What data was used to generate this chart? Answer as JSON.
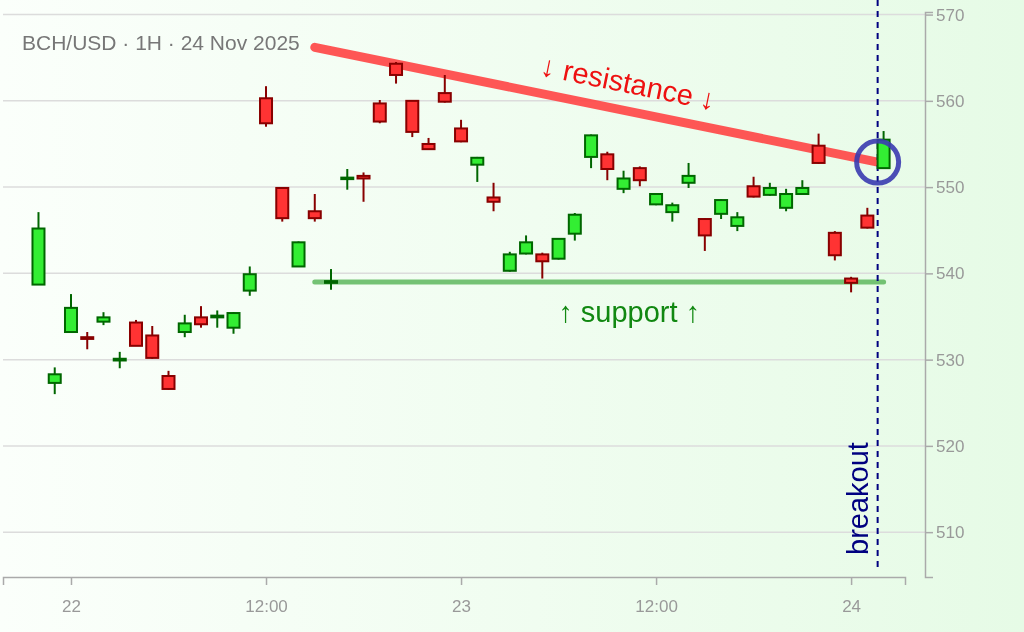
{
  "chart_data": {
    "type": "candlestick",
    "title": "BCH/USD · 1H · 24 Nov 2025",
    "x": [
      "2025-11-21T22:00",
      "2025-11-21T23:00",
      "2025-11-22T00:00",
      "2025-11-22T01:00",
      "2025-11-22T02:00",
      "2025-11-22T03:00",
      "2025-11-22T04:00",
      "2025-11-22T05:00",
      "2025-11-22T06:00",
      "2025-11-22T07:00",
      "2025-11-22T08:00",
      "2025-11-22T09:00",
      "2025-11-22T10:00",
      "2025-11-22T11:00",
      "2025-11-22T12:00",
      "2025-11-22T13:00",
      "2025-11-22T14:00",
      "2025-11-22T15:00",
      "2025-11-22T16:00",
      "2025-11-22T17:00",
      "2025-11-22T18:00",
      "2025-11-22T19:00",
      "2025-11-22T20:00",
      "2025-11-22T21:00",
      "2025-11-22T22:00",
      "2025-11-22T23:00",
      "2025-11-23T00:00",
      "2025-11-23T01:00",
      "2025-11-23T02:00",
      "2025-11-23T03:00",
      "2025-11-23T04:00",
      "2025-11-23T05:00",
      "2025-11-23T06:00",
      "2025-11-23T07:00",
      "2025-11-23T08:00",
      "2025-11-23T09:00",
      "2025-11-23T10:00",
      "2025-11-23T11:00",
      "2025-11-23T12:00",
      "2025-11-23T13:00",
      "2025-11-23T14:00",
      "2025-11-23T15:00",
      "2025-11-23T16:00",
      "2025-11-23T17:00",
      "2025-11-23T18:00",
      "2025-11-23T19:00",
      "2025-11-23T20:00",
      "2025-11-23T21:00",
      "2025-11-23T22:00",
      "2025-11-23T23:00",
      "2025-11-24T00:00",
      "2025-11-24T01:00",
      "2025-11-24T02:00"
    ],
    "ohlc": [
      [
        538.7,
        547.1,
        538.7,
        545.2
      ],
      [
        527.3,
        529.1,
        526.0,
        528.3
      ],
      [
        533.2,
        537.6,
        533.2,
        536.0
      ],
      [
        532.6,
        533.2,
        531.2,
        532.4
      ],
      [
        534.4,
        535.5,
        534.0,
        534.9
      ],
      [
        529.9,
        530.9,
        529.0,
        530.1
      ],
      [
        534.3,
        534.6,
        531.6,
        531.6
      ],
      [
        532.8,
        533.9,
        530.1,
        530.2
      ],
      [
        528.1,
        528.7,
        526.5,
        526.6
      ],
      [
        533.2,
        535.2,
        532.6,
        534.2
      ],
      [
        534.9,
        536.2,
        533.7,
        534.1
      ],
      [
        534.9,
        535.7,
        533.7,
        535.1
      ],
      [
        533.7,
        535.5,
        533.0,
        535.4
      ],
      [
        538.0,
        540.8,
        537.4,
        539.9
      ],
      [
        560.3,
        561.7,
        557.0,
        557.4
      ],
      [
        549.9,
        550.0,
        546.0,
        546.4
      ],
      [
        540.8,
        543.7,
        540.8,
        543.6
      ],
      [
        547.2,
        549.2,
        546.0,
        546.4
      ],
      [
        538.9,
        540.5,
        538.1,
        539.1
      ],
      [
        551.0,
        552.1,
        549.7,
        551.1
      ],
      [
        551.3,
        551.7,
        548.3,
        551.0
      ],
      [
        559.7,
        560.1,
        557.4,
        557.6
      ],
      [
        564.3,
        564.5,
        562.0,
        563.0
      ],
      [
        560.0,
        560.1,
        555.8,
        556.4
      ],
      [
        555.0,
        555.7,
        554.3,
        554.4
      ],
      [
        560.9,
        563.0,
        559.8,
        559.9
      ],
      [
        556.8,
        557.8,
        555.2,
        555.3
      ],
      [
        552.6,
        553.5,
        550.6,
        553.4
      ],
      [
        548.8,
        550.5,
        547.2,
        548.3
      ],
      [
        540.3,
        542.5,
        540.2,
        542.2
      ],
      [
        542.3,
        544.4,
        542.2,
        543.6
      ],
      [
        542.2,
        542.4,
        539.4,
        541.4
      ],
      [
        541.7,
        544.1,
        541.6,
        544.0
      ],
      [
        544.6,
        547.0,
        543.8,
        546.8
      ],
      [
        553.5,
        556.1,
        552.2,
        556.0
      ],
      [
        553.8,
        554.1,
        550.8,
        552.1
      ],
      [
        549.8,
        551.9,
        549.3,
        551.0
      ],
      [
        552.2,
        552.4,
        550.1,
        550.8
      ],
      [
        548.0,
        549.3,
        547.9,
        549.2
      ],
      [
        547.1,
        548.2,
        546.0,
        547.9
      ],
      [
        550.5,
        552.8,
        549.9,
        551.3
      ],
      [
        546.3,
        546.4,
        542.6,
        544.4
      ],
      [
        546.9,
        548.6,
        546.3,
        548.5
      ],
      [
        545.5,
        547.1,
        544.9,
        546.5
      ],
      [
        550.1,
        551.2,
        548.8,
        548.9
      ],
      [
        549.1,
        550.5,
        549.0,
        549.9
      ],
      [
        547.6,
        549.8,
        547.2,
        549.2
      ],
      [
        549.2,
        550.8,
        549.1,
        549.9
      ],
      [
        554.8,
        556.2,
        552.7,
        552.8
      ],
      [
        544.7,
        544.9,
        541.5,
        542.1
      ],
      [
        539.4,
        539.6,
        537.8,
        538.9
      ],
      [
        546.7,
        547.6,
        545.2,
        545.3
      ],
      [
        552.2,
        556.5,
        552.1,
        555.5
      ]
    ],
    "series": [
      {
        "type": "line",
        "name": "↓ resistance ↓",
        "color": "#ff4444",
        "x": [
          "2025-11-22T15:00",
          "2025-11-24T01:38"
        ],
        "values": [
          566.2,
          552.9
        ]
      },
      {
        "type": "line",
        "name": "↑ support ↑",
        "color": "#66bb66",
        "x": [
          "2025-11-22T15:00",
          "2025-11-24T02:00"
        ],
        "values": [
          539.0,
          539.0
        ]
      }
    ],
    "ref_lines": [
      {
        "axis": "x",
        "value": "2025-11-24T01:38",
        "label": "breakout",
        "color": "#000080",
        "line_style": "dashed"
      }
    ],
    "xlim": [
      "2025-11-21T19:49",
      "2025-11-24T03:19"
    ],
    "xticks": [
      {
        "value": "2025-11-22",
        "label": "22"
      },
      {
        "value": "2025-11-22T12:00",
        "label": "12:00"
      },
      {
        "value": "2025-11-23",
        "label": "23"
      },
      {
        "value": "2025-11-23T12:00",
        "label": "12:00"
      },
      {
        "value": "2025-11-24",
        "label": "24"
      }
    ],
    "ylim": [
      504.8,
      570.3
    ],
    "yticks": [
      510,
      520,
      530,
      540,
      550,
      560,
      570
    ],
    "grid": "y"
  }
}
